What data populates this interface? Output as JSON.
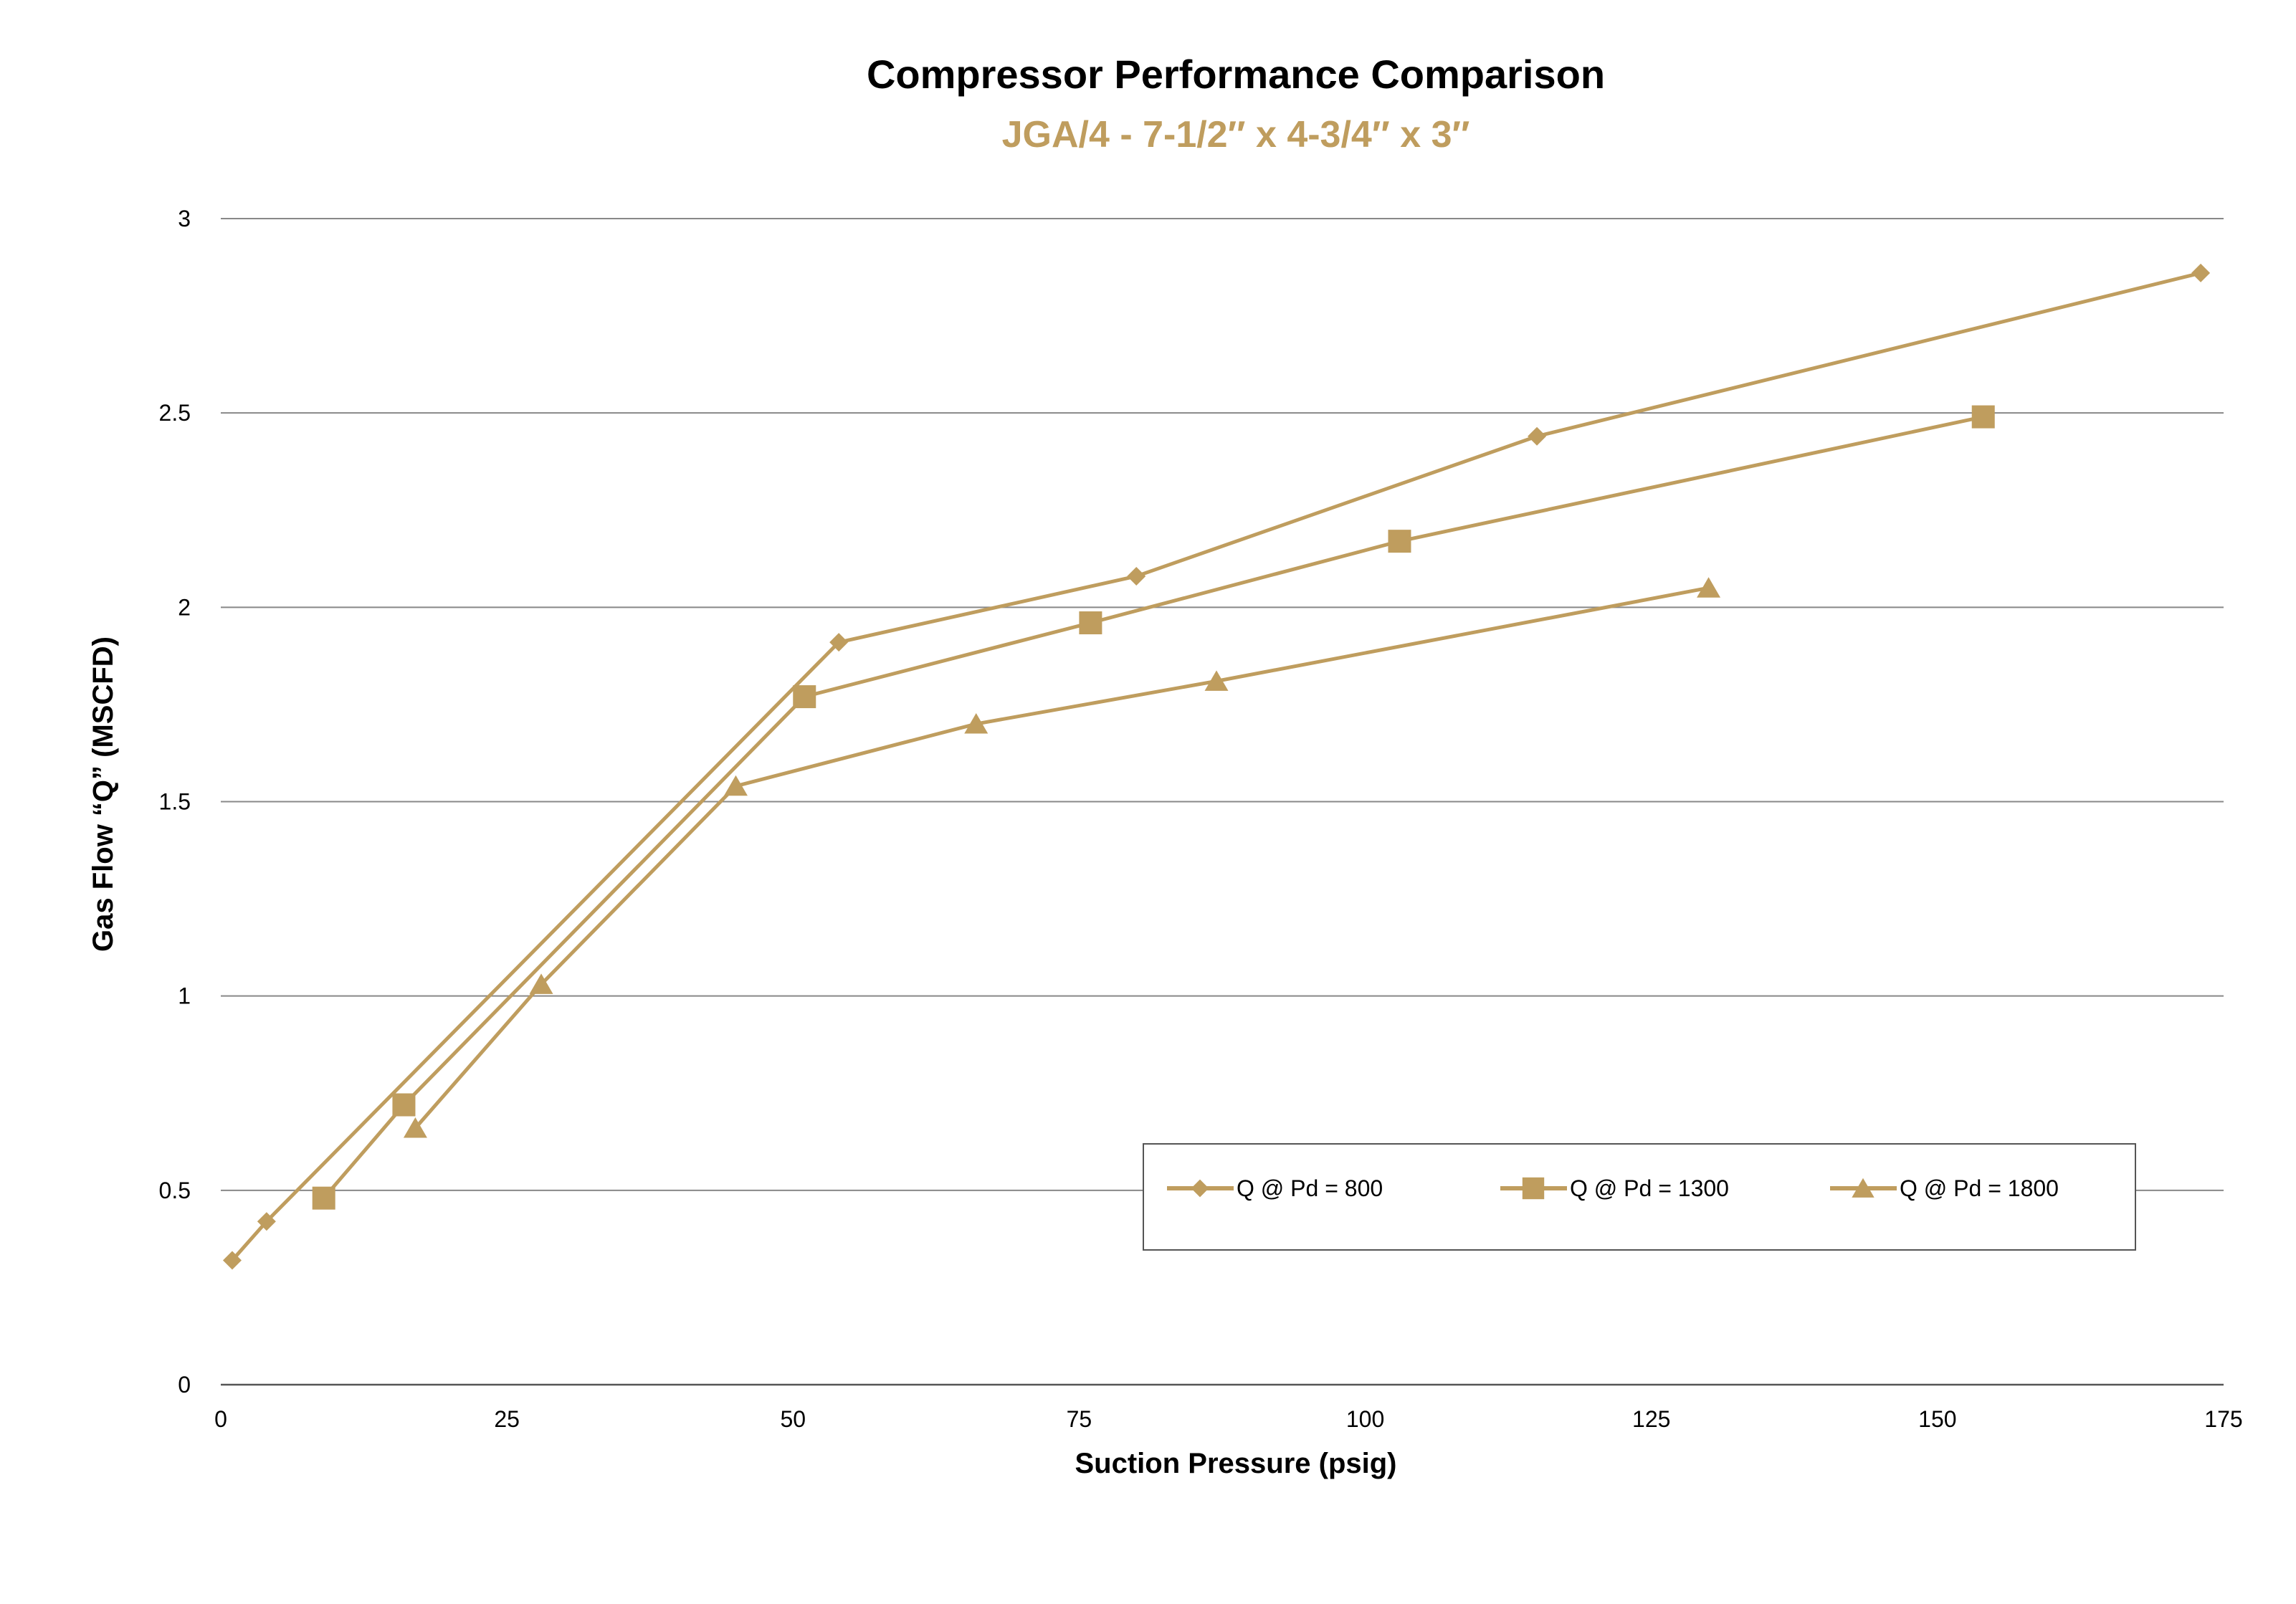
{
  "chart_data": {
    "type": "line",
    "title": "Compressor Performance Comparison",
    "subtitle": "JGA/4 - 7-1/2″ x 4-3/4″ x 3″",
    "xlabel": "Suction Pressure (psig)",
    "ylabel": "Gas Flow “Q” (MSCFD)",
    "xlim": [
      0,
      175
    ],
    "ylim": [
      0,
      3
    ],
    "xticks": [
      "0",
      "25",
      "50",
      "75",
      "100",
      "125",
      "150",
      "175"
    ],
    "yticks": [
      "0",
      "0.5",
      "1",
      "1.5",
      "2",
      "2.5",
      "3"
    ],
    "grid": "horizontal",
    "legend_position": "bottom-right",
    "color": "#BF9D5E",
    "subtitle_color": "#BF9D5E",
    "series": [
      {
        "name": "Q @ Pd = 800",
        "marker": "diamond",
        "x": [
          1,
          4,
          54,
          80,
          115,
          173
        ],
        "y": [
          0.32,
          0.42,
          1.91,
          2.08,
          2.44,
          2.86
        ]
      },
      {
        "name": "Q @ Pd = 1300",
        "marker": "square",
        "x": [
          9,
          16,
          51,
          76,
          103,
          154
        ],
        "y": [
          0.48,
          0.72,
          1.77,
          1.96,
          2.17,
          2.49
        ]
      },
      {
        "name": "Q @ Pd = 1800",
        "marker": "triangle",
        "x": [
          17,
          28,
          45,
          66,
          87,
          130
        ],
        "y": [
          0.66,
          1.03,
          1.54,
          1.7,
          1.81,
          2.05
        ]
      }
    ]
  }
}
